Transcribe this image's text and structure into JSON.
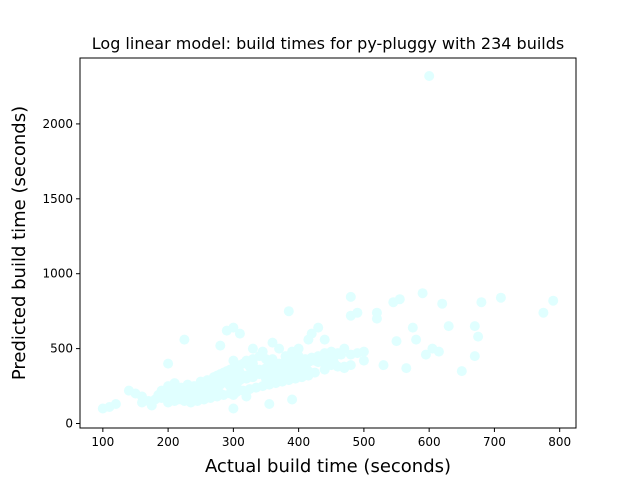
{
  "chart_data": {
    "type": "scatter",
    "title": "Log linear model: build times for py-pluggy with 234 builds",
    "xlabel": "Actual build time (seconds)",
    "ylabel": "Predicted build time (seconds)",
    "xlim": [
      65,
      825
    ],
    "ylim": [
      -30,
      2440
    ],
    "xticks": [
      100,
      200,
      300,
      400,
      500,
      600,
      700,
      800
    ],
    "yticks": [
      0,
      500,
      1000,
      1500,
      2000
    ],
    "grid": false,
    "marker_color": "#e0ffff",
    "points": [
      [
        600,
        2320
      ],
      [
        590,
        870
      ],
      [
        480,
        845
      ],
      [
        555,
        830
      ],
      [
        545,
        810
      ],
      [
        620,
        800
      ],
      [
        680,
        810
      ],
      [
        710,
        840
      ],
      [
        790,
        820
      ],
      [
        775,
        740
      ],
      [
        520,
        740
      ],
      [
        520,
        700
      ],
      [
        490,
        740
      ],
      [
        480,
        720
      ],
      [
        385,
        750
      ],
      [
        630,
        650
      ],
      [
        670,
        650
      ],
      [
        675,
        580
      ],
      [
        670,
        450
      ],
      [
        650,
        350
      ],
      [
        615,
        480
      ],
      [
        605,
        500
      ],
      [
        595,
        460
      ],
      [
        580,
        560
      ],
      [
        575,
        640
      ],
      [
        565,
        370
      ],
      [
        530,
        390
      ],
      [
        550,
        550
      ],
      [
        500,
        480
      ],
      [
        500,
        420
      ],
      [
        470,
        380
      ],
      [
        440,
        560
      ],
      [
        430,
        640
      ],
      [
        420,
        600
      ],
      [
        415,
        560
      ],
      [
        400,
        500
      ],
      [
        390,
        480
      ],
      [
        380,
        450
      ],
      [
        370,
        500
      ],
      [
        360,
        540
      ],
      [
        345,
        480
      ],
      [
        330,
        500
      ],
      [
        310,
        600
      ],
      [
        300,
        640
      ],
      [
        290,
        620
      ],
      [
        280,
        520
      ],
      [
        225,
        560
      ],
      [
        200,
        400
      ],
      [
        320,
        420
      ],
      [
        330,
        400
      ],
      [
        350,
        430
      ],
      [
        360,
        430
      ],
      [
        370,
        400
      ],
      [
        380,
        420
      ],
      [
        390,
        430
      ],
      [
        400,
        450
      ],
      [
        410,
        430
      ],
      [
        420,
        440
      ],
      [
        430,
        450
      ],
      [
        440,
        470
      ],
      [
        450,
        480
      ],
      [
        460,
        470
      ],
      [
        470,
        500
      ],
      [
        480,
        460
      ],
      [
        490,
        470
      ],
      [
        455,
        400
      ],
      [
        440,
        360
      ],
      [
        410,
        380
      ],
      [
        400,
        370
      ],
      [
        390,
        360
      ],
      [
        380,
        350
      ],
      [
        370,
        340
      ],
      [
        360,
        320
      ],
      [
        350,
        300
      ],
      [
        340,
        330
      ],
      [
        330,
        310
      ],
      [
        320,
        300
      ],
      [
        310,
        290
      ],
      [
        300,
        280
      ],
      [
        290,
        270
      ],
      [
        280,
        260
      ],
      [
        270,
        250
      ],
      [
        260,
        240
      ],
      [
        250,
        230
      ],
      [
        240,
        220
      ],
      [
        230,
        210
      ],
      [
        220,
        200
      ],
      [
        210,
        190
      ],
      [
        200,
        180
      ],
      [
        190,
        170
      ],
      [
        180,
        160
      ],
      [
        170,
        150
      ],
      [
        160,
        140
      ],
      [
        150,
        200
      ],
      [
        140,
        220
      ],
      [
        175,
        120
      ],
      [
        160,
        180
      ],
      [
        110,
        110
      ],
      [
        100,
        100
      ],
      [
        120,
        130
      ],
      [
        190,
        220
      ],
      [
        200,
        250
      ],
      [
        210,
        270
      ],
      [
        220,
        240
      ],
      [
        230,
        260
      ],
      [
        240,
        230
      ],
      [
        250,
        280
      ],
      [
        260,
        270
      ],
      [
        270,
        290
      ],
      [
        280,
        300
      ],
      [
        290,
        330
      ],
      [
        300,
        310
      ],
      [
        310,
        340
      ],
      [
        320,
        320
      ],
      [
        330,
        350
      ],
      [
        340,
        360
      ],
      [
        350,
        370
      ],
      [
        360,
        390
      ],
      [
        370,
        380
      ],
      [
        380,
        370
      ],
      [
        390,
        380
      ],
      [
        400,
        400
      ],
      [
        410,
        410
      ],
      [
        420,
        420
      ],
      [
        430,
        410
      ],
      [
        440,
        400
      ],
      [
        450,
        390
      ],
      [
        460,
        380
      ],
      [
        470,
        370
      ],
      [
        480,
        390
      ],
      [
        425,
        340
      ],
      [
        415,
        320
      ],
      [
        405,
        310
      ],
      [
        395,
        300
      ],
      [
        385,
        290
      ],
      [
        375,
        280
      ],
      [
        365,
        270
      ],
      [
        355,
        260
      ],
      [
        345,
        250
      ],
      [
        335,
        240
      ],
      [
        325,
        230
      ],
      [
        315,
        220
      ],
      [
        305,
        210
      ],
      [
        295,
        200
      ],
      [
        285,
        190
      ],
      [
        275,
        180
      ],
      [
        265,
        170
      ],
      [
        255,
        160
      ],
      [
        245,
        150
      ],
      [
        235,
        140
      ],
      [
        225,
        150
      ],
      [
        215,
        160
      ],
      [
        205,
        170
      ],
      [
        195,
        180
      ],
      [
        185,
        190
      ],
      [
        200,
        210
      ],
      [
        210,
        220
      ],
      [
        220,
        230
      ],
      [
        230,
        240
      ],
      [
        240,
        250
      ],
      [
        250,
        260
      ],
      [
        260,
        290
      ],
      [
        270,
        310
      ],
      [
        280,
        330
      ],
      [
        290,
        350
      ],
      [
        300,
        370
      ],
      [
        310,
        390
      ],
      [
        320,
        410
      ],
      [
        330,
        430
      ],
      [
        340,
        450
      ],
      [
        300,
        100
      ],
      [
        355,
        130
      ],
      [
        390,
        160
      ],
      [
        320,
        180
      ],
      [
        300,
        190
      ],
      [
        280,
        200
      ],
      [
        260,
        210
      ],
      [
        240,
        200
      ],
      [
        230,
        190
      ],
      [
        220,
        180
      ],
      [
        215,
        210
      ],
      [
        225,
        220
      ],
      [
        235,
        230
      ],
      [
        245,
        240
      ],
      [
        255,
        250
      ],
      [
        265,
        260
      ],
      [
        275,
        270
      ],
      [
        285,
        280
      ],
      [
        295,
        290
      ],
      [
        305,
        300
      ],
      [
        315,
        310
      ],
      [
        325,
        320
      ],
      [
        335,
        330
      ],
      [
        345,
        340
      ],
      [
        355,
        350
      ],
      [
        365,
        360
      ],
      [
        375,
        370
      ],
      [
        385,
        380
      ],
      [
        395,
        390
      ],
      [
        405,
        400
      ],
      [
        415,
        410
      ],
      [
        425,
        420
      ],
      [
        435,
        430
      ],
      [
        445,
        440
      ],
      [
        455,
        450
      ],
      [
        465,
        460
      ],
      [
        270,
        210
      ],
      [
        260,
        200
      ],
      [
        250,
        190
      ],
      [
        240,
        180
      ],
      [
        230,
        170
      ],
      [
        220,
        160
      ],
      [
        210,
        150
      ],
      [
        200,
        140
      ],
      [
        275,
        320
      ],
      [
        285,
        340
      ],
      [
        295,
        360
      ],
      [
        305,
        380
      ],
      [
        315,
        400
      ],
      [
        325,
        380
      ],
      [
        335,
        360
      ],
      [
        345,
        340
      ],
      [
        355,
        320
      ],
      [
        365,
        300
      ],
      [
        375,
        310
      ],
      [
        385,
        320
      ],
      [
        395,
        330
      ],
      [
        405,
        340
      ],
      [
        415,
        350
      ],
      [
        300,
        420
      ],
      [
        295,
        250
      ],
      [
        305,
        260
      ],
      [
        265,
        225
      ],
      [
        245,
        215
      ]
    ]
  }
}
